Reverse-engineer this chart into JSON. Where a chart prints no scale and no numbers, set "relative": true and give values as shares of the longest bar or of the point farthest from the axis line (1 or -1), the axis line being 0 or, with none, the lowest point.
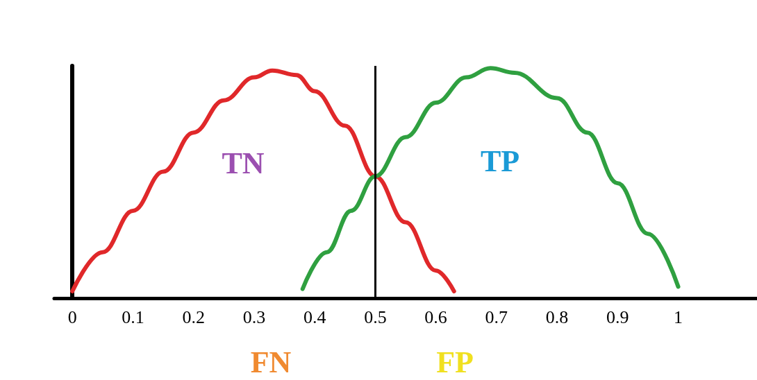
{
  "chart_data": {
    "type": "line",
    "relative": true,
    "xlim": [
      -0.03,
      1.13
    ],
    "xticks": [
      0,
      0.1,
      0.2,
      0.3,
      0.4,
      0.5,
      0.6,
      0.7,
      0.8,
      0.9,
      1
    ],
    "series": [
      {
        "color": "#e0282a",
        "x": [
          0,
          0.05,
          0.1,
          0.15,
          0.2,
          0.25,
          0.3,
          0.33,
          0.37,
          0.4,
          0.45,
          0.5,
          0.55,
          0.6,
          0.63
        ],
        "values": [
          0.03,
          0.2,
          0.38,
          0.55,
          0.72,
          0.86,
          0.96,
          0.99,
          0.97,
          0.9,
          0.75,
          0.53,
          0.33,
          0.12,
          0.03
        ]
      },
      {
        "color": "#2fa040",
        "x": [
          0.38,
          0.42,
          0.46,
          0.5,
          0.55,
          0.6,
          0.65,
          0.69,
          0.73,
          0.8,
          0.85,
          0.9,
          0.95,
          1.0
        ],
        "values": [
          0.04,
          0.2,
          0.38,
          0.53,
          0.7,
          0.85,
          0.96,
          1.0,
          0.98,
          0.87,
          0.72,
          0.5,
          0.28,
          0.05
        ]
      }
    ],
    "ref_lines": [
      {
        "axis": "x",
        "value": 0.5,
        "color": "#000000"
      }
    ],
    "annotations": [
      "TN",
      "TP",
      "FN",
      "FP"
    ],
    "grid": false,
    "marker": "none",
    "line_style": "solid"
  }
}
